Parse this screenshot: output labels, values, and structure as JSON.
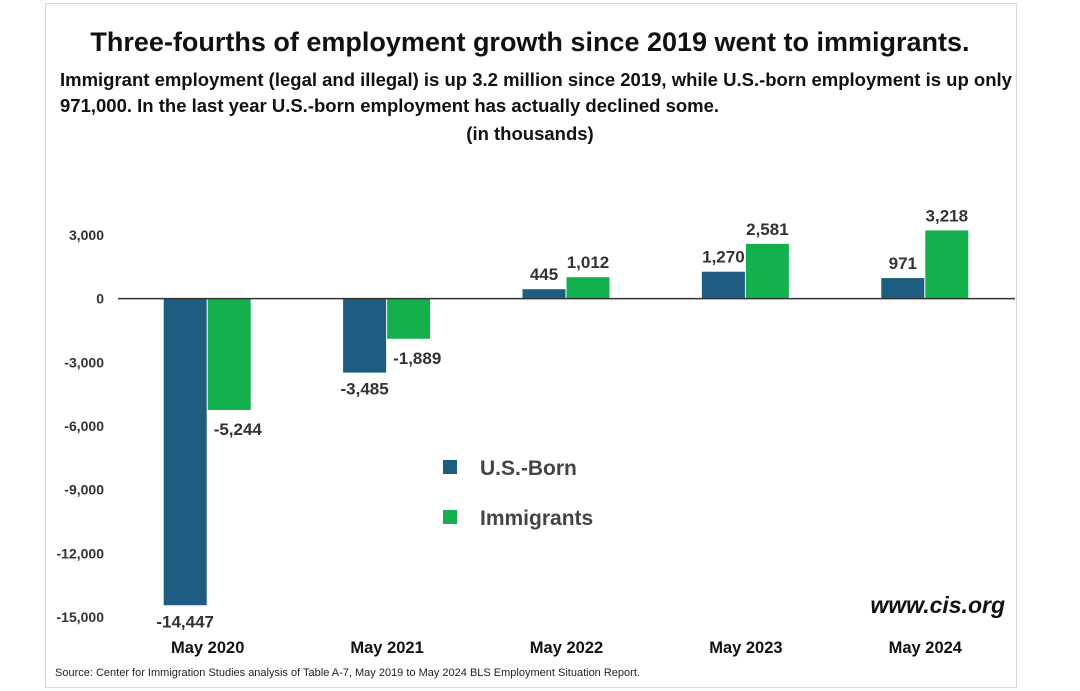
{
  "chart_data": {
    "type": "bar",
    "title": "Three-fourths of employment growth since 2019 went to immigrants.",
    "subtitle": "Immigrant employment (legal and illegal) is up 3.2 million since 2019, while U.S.-born employment is up only 971,000.  In the last year U.S.-born employment has actually declined some.",
    "unit_note": "(in thousands)",
    "categories": [
      "May 2020",
      "May 2021",
      "May 2022",
      "May 2023",
      "May 2024"
    ],
    "series": [
      {
        "name": "U.S.-Born",
        "color": "#1f5c82",
        "values": [
          -14447,
          -3485,
          445,
          1270,
          971
        ],
        "labels": [
          "-14,447",
          "-3,485",
          "445",
          "1,270",
          "971"
        ]
      },
      {
        "name": "Immigrants",
        "color": "#14b04e",
        "values": [
          -5244,
          -1889,
          1012,
          2581,
          3218
        ],
        "labels": [
          "-5,244",
          "-1,889",
          "1,012",
          "2,581",
          "3,218"
        ]
      }
    ],
    "yticks": [
      3000,
      0,
      -3000,
      -6000,
      -9000,
      -12000,
      -15000
    ],
    "ytick_labels": [
      "3,000",
      "0",
      "-3,000",
      "-6,000",
      "-9,000",
      "-12,000",
      "-15,000"
    ],
    "ylim": [
      -15000,
      3000
    ],
    "xlabel": "",
    "ylabel": "",
    "grid": false,
    "legend": "center",
    "watermark": "www.cis.org",
    "source": "Source: Center for Immigration Studies analysis of Table A-7, May 2019 to May 2024 BLS Employment Situation Report."
  }
}
